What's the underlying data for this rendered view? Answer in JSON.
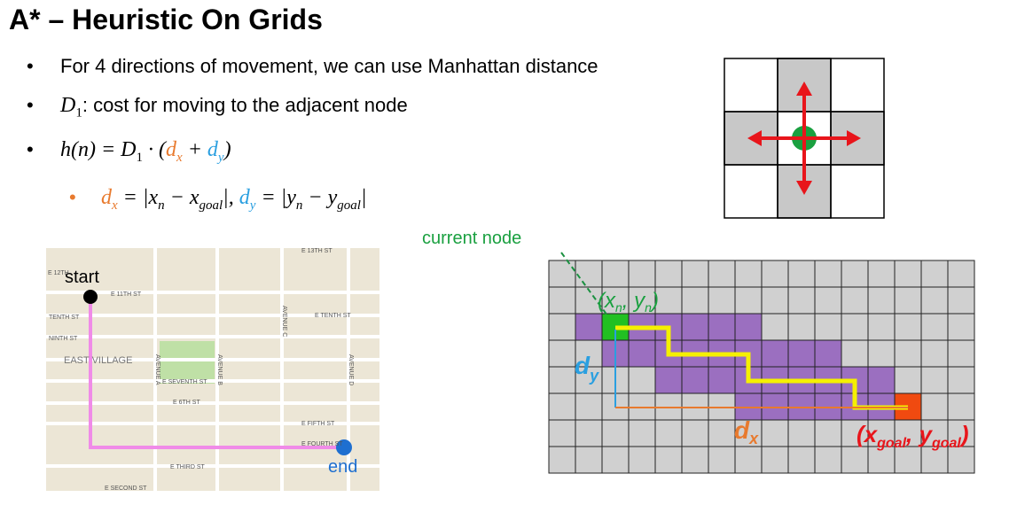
{
  "header": {
    "title": "A* – Heuristic On Grids"
  },
  "bullets": [
    [
      "For 4 directions of movement, we can use Manhattan distance"
    ],
    [
      "D",
      "1",
      ": cost for moving to the adjacent node"
    ],
    [
      "h(n) = D",
      "1",
      " · (",
      "d",
      "x",
      " + ",
      "d",
      "y",
      ")"
    ]
  ],
  "sub_bullet": [
    "d",
    "x",
    " = |x",
    "n",
    " − x",
    "goal",
    "|, ",
    "d",
    "y",
    " = |y",
    "n",
    " − y",
    "goal",
    "|"
  ],
  "map": {
    "start": "start",
    "end": "end",
    "streets": [
      "E 13TH ST",
      "E 12TH",
      "E 11TH ST",
      "TENTH ST",
      "NINTH ST",
      "EAST VILLAGE",
      "AVENUE A",
      "E SEVENTH ST",
      "AVENUE B",
      "E 6TH ST",
      "AVENUE C",
      "E TENTH ST",
      "AVENUE D",
      "E FIFTH ST",
      "E FOURTH ST",
      "E THIRD ST",
      "E SECOND ST"
    ]
  },
  "grid_diagram": {
    "current_node": "current node",
    "node": [
      "(x",
      "n",
      ", y",
      "n",
      ")"
    ],
    "dy": [
      "d",
      "y"
    ],
    "dx": [
      "d",
      "x"
    ],
    "goal": [
      "(x",
      "goal",
      ", y",
      "goal",
      ")"
    ]
  }
}
